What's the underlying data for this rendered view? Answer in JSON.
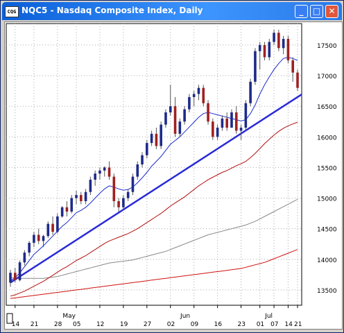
{
  "window": {
    "title": "NQC5 - Nasdaq Composite Index, Daily",
    "icon_label": "CQG",
    "buttons": {
      "minimize": "_",
      "maximize": "□",
      "close": "✕"
    }
  },
  "chart_data": {
    "type": "candlestick",
    "title": "NQC5 - Nasdaq Composite Index, Daily",
    "ylim": [
      13250,
      17850
    ],
    "y_ticks": [
      13500,
      14000,
      14500,
      15000,
      15500,
      16000,
      16500,
      17000,
      17500
    ],
    "y_tick_labels": [
      "13500",
      "14000",
      "14500",
      "15000",
      "15500",
      "16000",
      "16500",
      "17000",
      "17500"
    ],
    "x_day_labels": [
      "14",
      "21",
      "28",
      "05",
      "12",
      "19",
      "27",
      "02",
      "09",
      "16",
      "23",
      "01",
      "07",
      "14",
      "21"
    ],
    "x_month_labels": [
      "May",
      "Jun",
      "Jul"
    ],
    "grid": "dotted",
    "colors": {
      "up": "#1e2a8a",
      "down": "#a02020",
      "ma_short": "#1a2ccc",
      "ma_mid": "#b01010",
      "ma_long1": "#888888",
      "ma_long2": "#d01010",
      "trendline": "#2a2ad8"
    },
    "candles": [
      [
        13620,
        13830,
        13550,
        13780
      ],
      [
        13780,
        13860,
        13620,
        13660
      ],
      [
        13660,
        13980,
        13640,
        13950
      ],
      [
        13950,
        14150,
        13900,
        14110
      ],
      [
        14110,
        14300,
        14050,
        14270
      ],
      [
        14270,
        14450,
        14200,
        14400
      ],
      [
        14400,
        14500,
        14250,
        14300
      ],
      [
        14300,
        14400,
        14200,
        14380
      ],
      [
        14380,
        14620,
        14350,
        14580
      ],
      [
        14580,
        14700,
        14400,
        14450
      ],
      [
        14450,
        14750,
        14420,
        14700
      ],
      [
        14700,
        14870,
        14680,
        14850
      ],
      [
        14850,
        14950,
        14700,
        14780
      ],
      [
        14780,
        15050,
        14750,
        15000
      ],
      [
        15000,
        15120,
        14900,
        15050
      ],
      [
        15050,
        15100,
        14900,
        14950
      ],
      [
        14950,
        15150,
        14900,
        15100
      ],
      [
        15100,
        15350,
        15050,
        15300
      ],
      [
        15300,
        15450,
        15200,
        15400
      ],
      [
        15400,
        15500,
        15300,
        15450
      ],
      [
        15450,
        15520,
        15350,
        15500
      ],
      [
        15500,
        15600,
        15300,
        15350
      ],
      [
        15350,
        15400,
        14850,
        14950
      ],
      [
        14950,
        15000,
        14780,
        14850
      ],
      [
        14850,
        15050,
        14800,
        15000
      ],
      [
        15000,
        15150,
        14950,
        15100
      ],
      [
        15100,
        15400,
        15050,
        15350
      ],
      [
        15350,
        15600,
        15300,
        15550
      ],
      [
        15550,
        15750,
        15500,
        15700
      ],
      [
        15700,
        15950,
        15650,
        15900
      ],
      [
        15900,
        16100,
        15850,
        16050
      ],
      [
        16050,
        16150,
        15800,
        15850
      ],
      [
        15850,
        16250,
        15800,
        16200
      ],
      [
        16200,
        16450,
        16150,
        16400
      ],
      [
        16400,
        16850,
        16350,
        16500
      ],
      [
        16500,
        16650,
        16000,
        16050
      ],
      [
        16050,
        16300,
        16000,
        16250
      ],
      [
        16250,
        16500,
        16200,
        16450
      ],
      [
        16450,
        16700,
        16400,
        16650
      ],
      [
        16650,
        16750,
        16500,
        16700
      ],
      [
        16700,
        16850,
        16600,
        16800
      ],
      [
        16800,
        16850,
        16500,
        16550
      ],
      [
        16550,
        16600,
        16200,
        16250
      ],
      [
        16250,
        16300,
        15950,
        16000
      ],
      [
        16000,
        16200,
        15950,
        16150
      ],
      [
        16150,
        16350,
        16100,
        16300
      ],
      [
        16300,
        16400,
        16100,
        16150
      ],
      [
        16150,
        16450,
        16150,
        16400
      ],
      [
        16400,
        16500,
        16050,
        16100
      ],
      [
        16100,
        16200,
        15950,
        16150
      ],
      [
        16150,
        16600,
        16100,
        16550
      ],
      [
        16550,
        16950,
        16500,
        16900
      ],
      [
        16900,
        17450,
        16850,
        17400
      ],
      [
        17400,
        17550,
        17100,
        17500
      ],
      [
        17500,
        17550,
        17250,
        17300
      ],
      [
        17300,
        17600,
        17250,
        17550
      ],
      [
        17550,
        17750,
        17500,
        17700
      ],
      [
        17700,
        17750,
        17400,
        17450
      ],
      [
        17450,
        17650,
        17350,
        17600
      ],
      [
        17600,
        17650,
        17200,
        17250
      ],
      [
        17250,
        17300,
        16900,
        17050
      ],
      [
        17050,
        17100,
        16750,
        16800
      ]
    ],
    "ma_short": [
      13650,
      13700,
      13780,
      13880,
      13980,
      14080,
      14150,
      14220,
      14300,
      14380,
      14460,
      14540,
      14600,
      14680,
      14760,
      14800,
      14850,
      14920,
      15000,
      15080,
      15150,
      15200,
      15180,
      15150,
      15130,
      15140,
      15180,
      15250,
      15330,
      15420,
      15520,
      15600,
      15680,
      15780,
      15880,
      15940,
      16000,
      16080,
      16160,
      16240,
      16320,
      16380,
      16400,
      16380,
      16360,
      16340,
      16320,
      16300,
      16280,
      16260,
      16280,
      16380,
      16520,
      16700,
      16850,
      16980,
      17100,
      17200,
      17280,
      17300,
      17280,
      17250
    ],
    "ma_mid": [
      13400,
      13420,
      13450,
      13480,
      13520,
      13560,
      13600,
      13640,
      13690,
      13740,
      13790,
      13840,
      13880,
      13930,
      13980,
      14020,
      14060,
      14110,
      14160,
      14210,
      14260,
      14300,
      14330,
      14360,
      14390,
      14420,
      14460,
      14500,
      14550,
      14600,
      14650,
      14700,
      14750,
      14810,
      14870,
      14920,
      14970,
      15020,
      15080,
      15140,
      15200,
      15250,
      15300,
      15340,
      15380,
      15420,
      15450,
      15490,
      15530,
      15560,
      15600,
      15660,
      15730,
      15810,
      15890,
      15960,
      16030,
      16090,
      16140,
      16180,
      16210,
      16240
    ],
    "ma_long1": [
      13700,
      13700,
      13690,
      13690,
      13690,
      13690,
      13690,
      13690,
      13700,
      13710,
      13720,
      13740,
      13760,
      13780,
      13800,
      13820,
      13840,
      13860,
      13880,
      13900,
      13920,
      13940,
      13950,
      13960,
      13970,
      13980,
      13990,
      14010,
      14030,
      14050,
      14070,
      14090,
      14110,
      14130,
      14160,
      14190,
      14220,
      14250,
      14280,
      14310,
      14340,
      14370,
      14400,
      14420,
      14440,
      14460,
      14480,
      14500,
      14520,
      14540,
      14560,
      14590,
      14620,
      14660,
      14700,
      14740,
      14780,
      14820,
      14860,
      14900,
      14940,
      14980
    ],
    "ma_long2": [
      13360,
      13370,
      13380,
      13390,
      13400,
      13410,
      13420,
      13430,
      13440,
      13450,
      13460,
      13470,
      13480,
      13490,
      13500,
      13510,
      13520,
      13530,
      13540,
      13550,
      13560,
      13570,
      13580,
      13590,
      13600,
      13610,
      13620,
      13630,
      13640,
      13650,
      13660,
      13670,
      13680,
      13690,
      13700,
      13710,
      13720,
      13730,
      13740,
      13750,
      13760,
      13770,
      13780,
      13790,
      13800,
      13810,
      13820,
      13830,
      13840,
      13850,
      13870,
      13890,
      13910,
      13930,
      13950,
      13980,
      14010,
      14040,
      14070,
      14100,
      14130,
      14160
    ],
    "trendline": [
      [
        0,
        13620
      ],
      [
        61,
        16650
      ]
    ]
  }
}
